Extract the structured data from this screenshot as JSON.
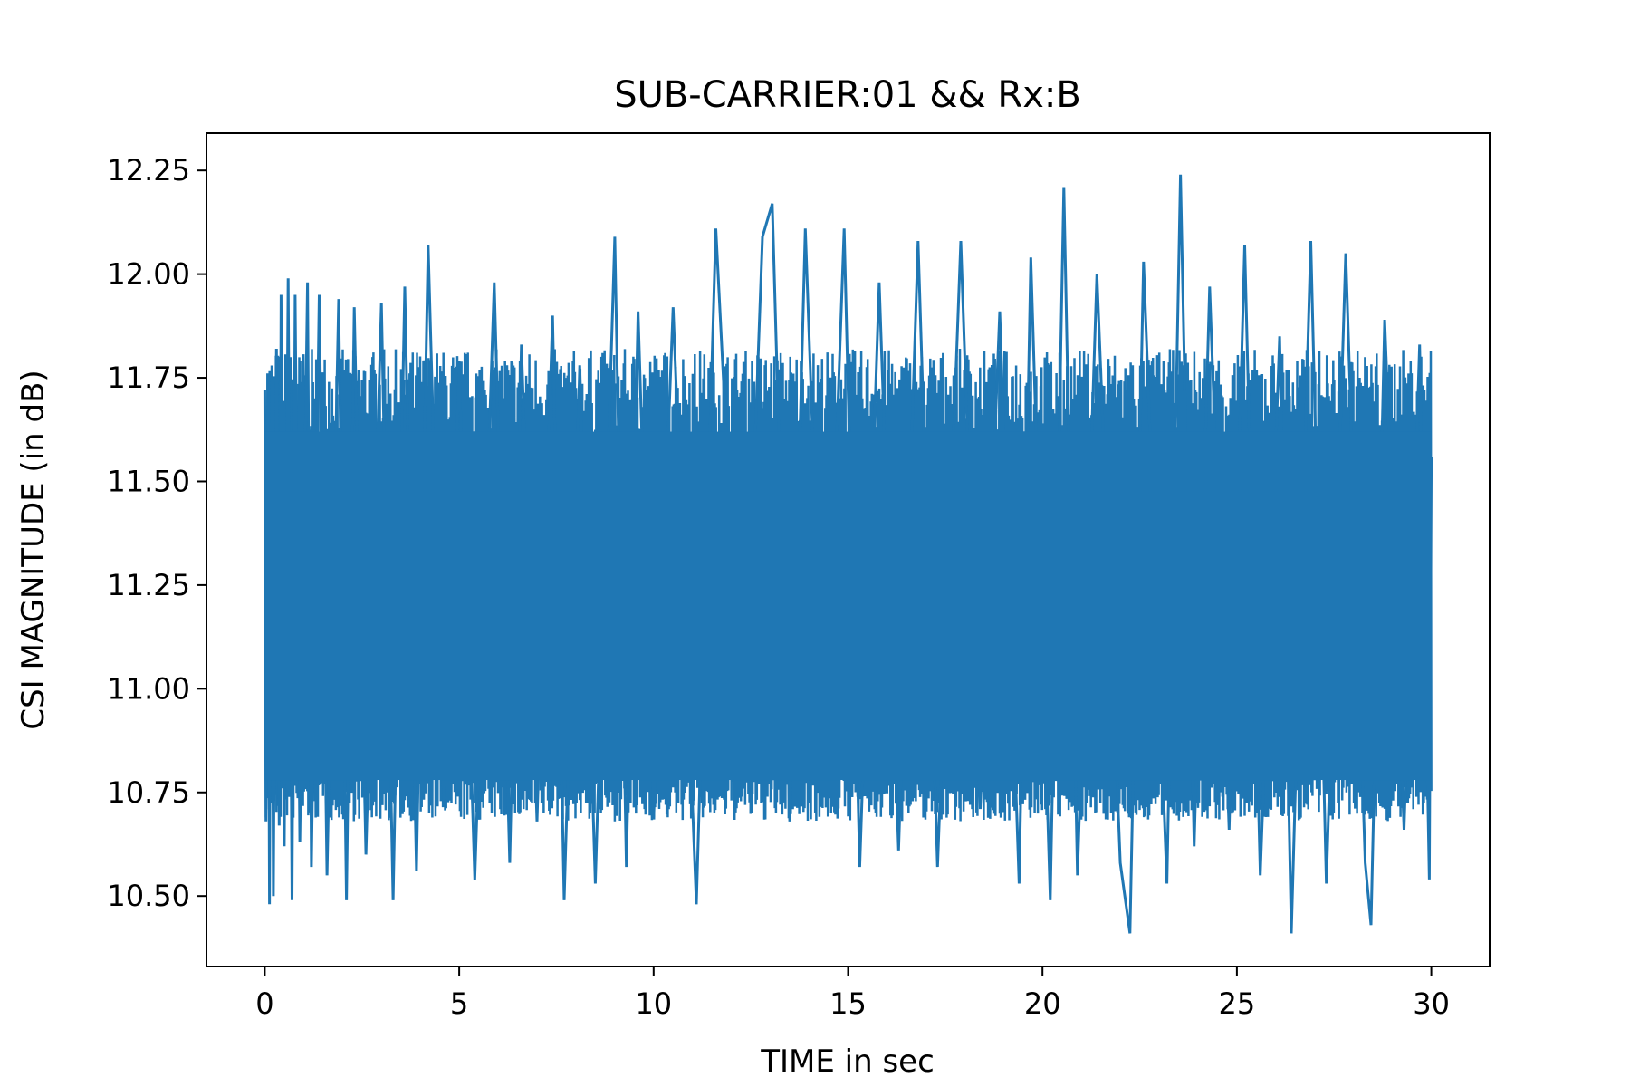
{
  "chart_data": {
    "type": "line",
    "title": "SUB-CARRIER:01 && Rx:B",
    "xlabel": "TIME in sec",
    "ylabel": "CSI MAGNITUDE (in dB)",
    "xlim": [
      -1.5,
      31.5
    ],
    "ylim": [
      10.33,
      12.34
    ],
    "xticks": [
      0,
      5,
      10,
      15,
      20,
      25,
      30
    ],
    "xtick_labels": [
      "0",
      "5",
      "10",
      "15",
      "20",
      "25",
      "30"
    ],
    "yticks": [
      10.5,
      10.75,
      11.0,
      11.25,
      11.5,
      11.75,
      12.0,
      12.25
    ],
    "ytick_labels": [
      "10.50",
      "10.75",
      "11.00",
      "11.25",
      "11.50",
      "11.75",
      "12.00",
      "12.25"
    ],
    "grid": false,
    "legend": false,
    "series": [
      {
        "color": "#1f77b4",
        "x": [
          0.0,
          0.03,
          0.08,
          0.12,
          0.17,
          0.22,
          0.3,
          0.37,
          0.42,
          0.5,
          0.6,
          0.7,
          0.78,
          0.9,
          1.1,
          1.2,
          1.4,
          1.6,
          1.9,
          2.1,
          2.3,
          2.6,
          3.0,
          3.3,
          3.6,
          3.9,
          4.2,
          4.6,
          5.0,
          5.4,
          5.9,
          6.3,
          6.6,
          7.0,
          7.4,
          7.7,
          8.1,
          8.5,
          9.0,
          9.3,
          9.6,
          10.0,
          10.5,
          11.1,
          11.6,
          12.3,
          12.8,
          13.05,
          13.5,
          13.9,
          14.4,
          14.9,
          15.3,
          15.8,
          16.3,
          16.8,
          17.3,
          17.9,
          18.4,
          18.9,
          19.4,
          19.7,
          20.2,
          20.55,
          20.9,
          21.4,
          22.0,
          22.25,
          22.6,
          23.2,
          23.55,
          23.9,
          24.3,
          24.8,
          25.2,
          25.6,
          26.1,
          26.4,
          26.9,
          27.3,
          27.8,
          28.3,
          28.45,
          28.8,
          29.3,
          29.7,
          29.95,
          30.0
        ],
        "y": [
          11.72,
          10.68,
          11.55,
          10.48,
          11.76,
          10.5,
          11.82,
          10.67,
          11.95,
          10.62,
          11.99,
          10.49,
          11.95,
          10.63,
          11.98,
          10.57,
          11.95,
          10.55,
          11.94,
          10.49,
          11.92,
          10.6,
          11.93,
          10.49,
          11.97,
          10.56,
          12.07,
          10.73,
          11.77,
          10.54,
          11.98,
          10.58,
          11.83,
          10.68,
          11.9,
          10.49,
          11.78,
          10.53,
          12.09,
          10.57,
          11.91,
          10.69,
          11.92,
          10.48,
          12.11,
          10.8,
          12.09,
          12.17,
          10.68,
          12.11,
          10.79,
          12.11,
          10.57,
          11.98,
          10.61,
          12.08,
          10.57,
          12.08,
          10.71,
          11.91,
          10.53,
          12.04,
          10.49,
          12.21,
          10.55,
          12.0,
          10.58,
          10.41,
          12.03,
          10.53,
          12.24,
          10.62,
          11.97,
          10.66,
          12.07,
          10.55,
          11.85,
          10.41,
          12.08,
          10.53,
          12.05,
          10.58,
          10.43,
          11.89,
          10.66,
          11.83,
          10.54,
          11.56
        ]
      }
    ]
  }
}
